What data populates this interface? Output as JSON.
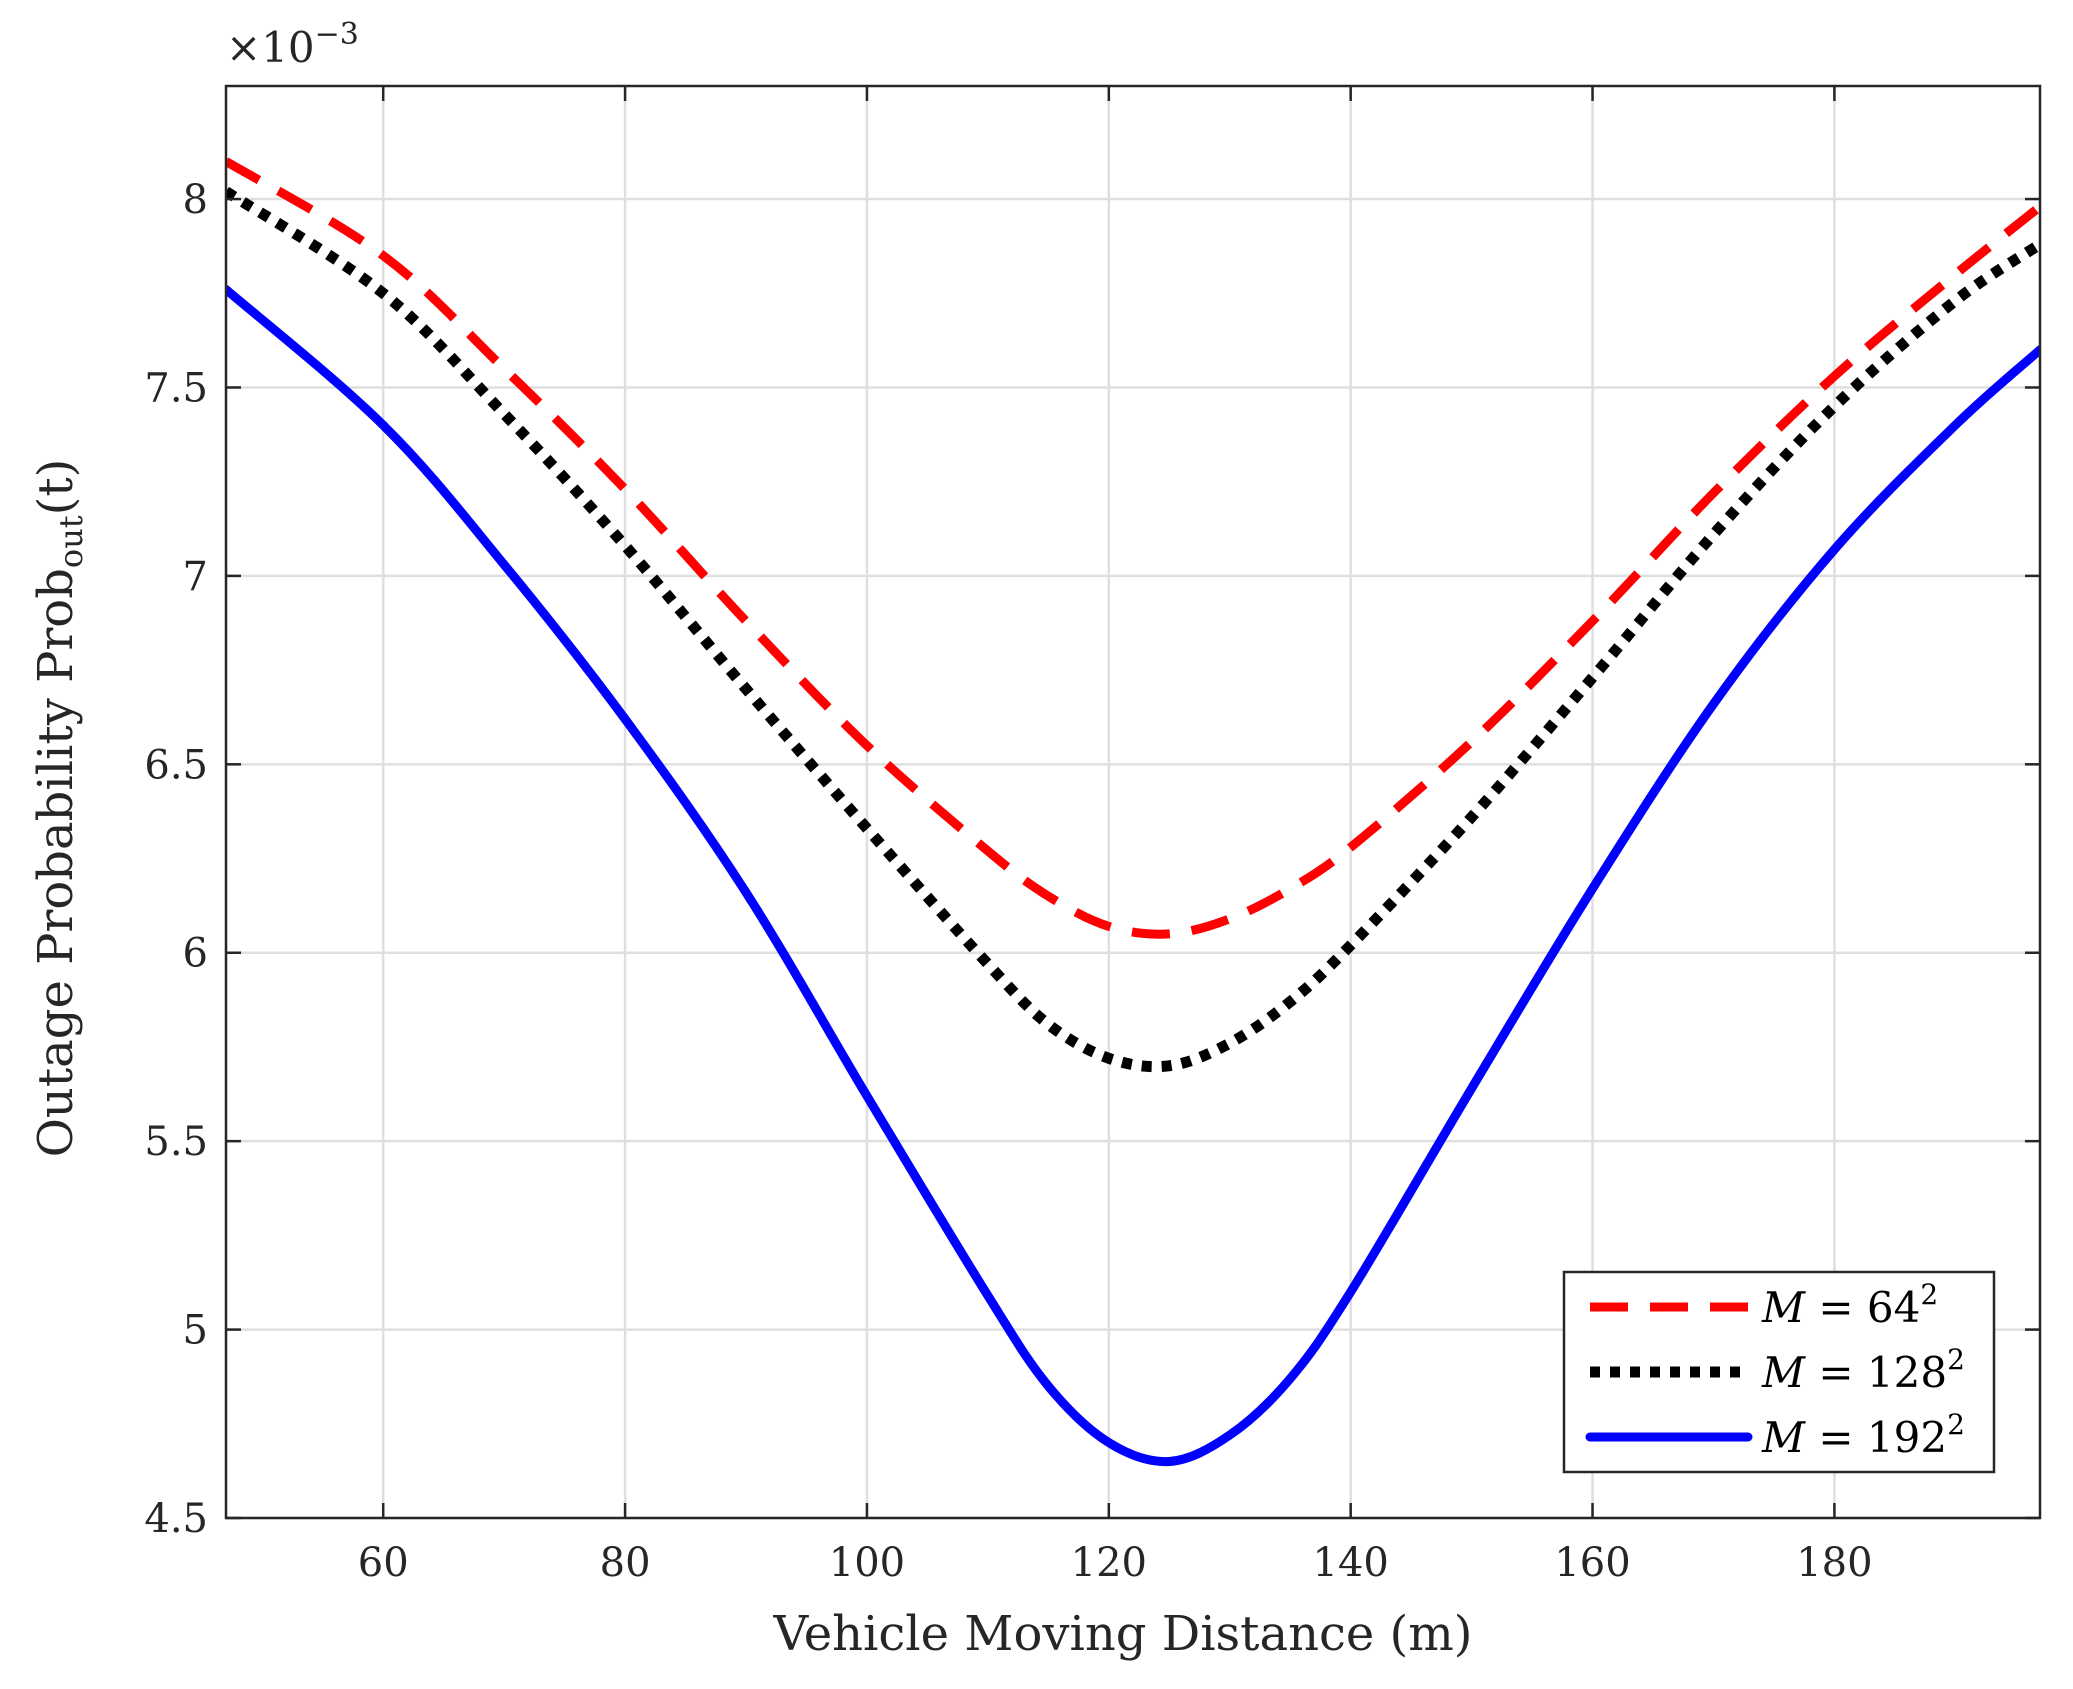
{
  "chart_data": {
    "type": "line",
    "xlabel": "Vehicle Moving Distance (m)",
    "ylabel": {
      "main": "Outage Probability Prob",
      "sub": "out",
      "suffix": "(t)"
    },
    "y_multiplier": {
      "base": "×10",
      "exponent": "−3"
    },
    "xlim": [
      47,
      197
    ],
    "ylim": [
      4.5,
      8.3
    ],
    "xticks": [
      60,
      80,
      100,
      120,
      140,
      160,
      180
    ],
    "yticks": [
      4.5,
      5,
      5.5,
      6,
      6.5,
      7,
      7.5,
      8
    ],
    "ytick_labels": [
      "4.5",
      "5",
      "5.5",
      "6",
      "6.5",
      "7",
      "7.5",
      "8"
    ],
    "grid": true,
    "legend_position": "bottom-right",
    "series": [
      {
        "name": "M = 64²",
        "legend": {
          "var": "M",
          "eq": " = 64",
          "sup": "2"
        },
        "color": "#ff0000",
        "style": "dashed",
        "x": [
          47,
          60,
          70,
          80,
          90,
          100,
          110,
          115,
          120,
          125,
          130,
          135,
          140,
          150,
          160,
          170,
          180,
          190,
          197
        ],
        "y": [
          8.1,
          7.85,
          7.55,
          7.23,
          6.88,
          6.55,
          6.27,
          6.15,
          6.07,
          6.05,
          6.09,
          6.17,
          6.28,
          6.56,
          6.88,
          7.22,
          7.53,
          7.8,
          7.98
        ]
      },
      {
        "name": "M = 128²",
        "legend": {
          "var": "M",
          "eq": " = 128",
          "sup": "2"
        },
        "color": "#000000",
        "style": "dotted",
        "x": [
          47,
          60,
          70,
          80,
          90,
          100,
          110,
          115,
          120,
          125,
          130,
          135,
          140,
          150,
          160,
          170,
          180,
          190,
          197
        ],
        "y": [
          8.02,
          7.75,
          7.43,
          7.08,
          6.7,
          6.33,
          5.97,
          5.81,
          5.72,
          5.7,
          5.76,
          5.87,
          6.02,
          6.36,
          6.73,
          7.11,
          7.45,
          7.73,
          7.88
        ]
      },
      {
        "name": "M = 192²",
        "legend": {
          "var": "M",
          "eq": " = 192",
          "sup": "2"
        },
        "color": "#0000ff",
        "style": "solid",
        "x": [
          47,
          60,
          70,
          80,
          90,
          100,
          110,
          115,
          120,
          125,
          130,
          135,
          140,
          150,
          160,
          170,
          180,
          190,
          197
        ],
        "y": [
          7.76,
          7.4,
          7.03,
          6.62,
          6.16,
          5.62,
          5.09,
          4.85,
          4.7,
          4.65,
          4.72,
          4.87,
          5.1,
          5.64,
          6.17,
          6.66,
          7.07,
          7.4,
          7.6
        ]
      }
    ]
  }
}
